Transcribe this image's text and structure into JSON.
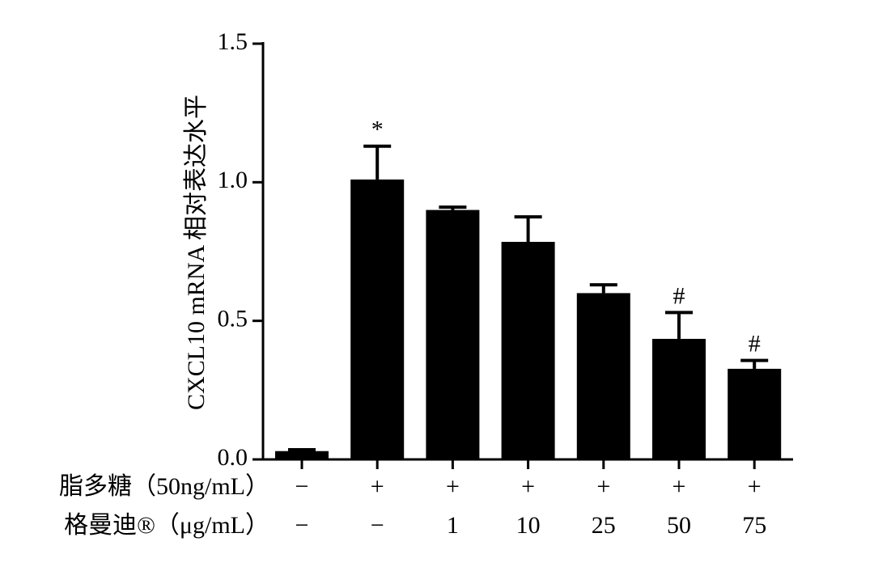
{
  "chart_data": {
    "type": "bar",
    "ylabel": "CXCL10 mRNA 相对表达水平",
    "x_label_rows": [
      {
        "label": "脂多糖（50ng/mL）",
        "values": [
          "−",
          "+",
          "+",
          "+",
          "+",
          "+",
          "+"
        ]
      },
      {
        "label": "格曼迪®（μg/mL）",
        "values": [
          "−",
          "−",
          "1",
          "10",
          "25",
          "50",
          "75"
        ]
      }
    ],
    "values": [
      0.03,
      1.01,
      0.9,
      0.785,
      0.6,
      0.435,
      0.327
    ],
    "errors": [
      0.005,
      0.12,
      0.01,
      0.09,
      0.03,
      0.095,
      0.03
    ],
    "annotations": [
      null,
      "*",
      null,
      null,
      null,
      "#",
      "#"
    ],
    "color": "#000000",
    "ylim": [
      0,
      1.5
    ],
    "yticks": [
      {
        "value": 0,
        "label": "0.0"
      },
      {
        "value": 0.5,
        "label": "0.5"
      },
      {
        "value": 1,
        "label": "1.0"
      },
      {
        "value": 1.5,
        "label": "1.5"
      }
    ]
  }
}
